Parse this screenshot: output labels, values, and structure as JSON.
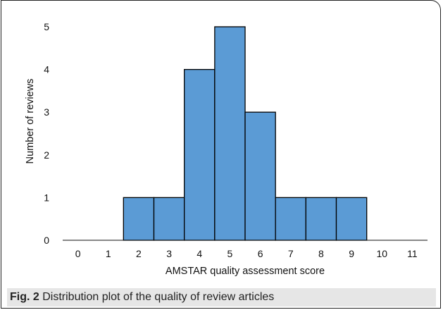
{
  "caption": {
    "label": "Fig. 2",
    "text": " Distribution plot of the quality of review articles"
  },
  "colors": {
    "bar_fill": "#5b9bd5",
    "bar_stroke": "#000000",
    "axis": "#111111"
  },
  "chart_data": {
    "type": "bar",
    "title": "",
    "xlabel": "AMSTAR quality assessment score",
    "ylabel": "Number of reviews",
    "categories": [
      "0",
      "1",
      "2",
      "3",
      "4",
      "5",
      "6",
      "7",
      "8",
      "9",
      "10",
      "11"
    ],
    "values": [
      0,
      0,
      1,
      1,
      4,
      5,
      3,
      1,
      1,
      1,
      0,
      0
    ],
    "ylim": [
      0,
      5
    ],
    "yticks": [
      "0",
      "1",
      "2",
      "3",
      "4",
      "5"
    ],
    "grid": false,
    "legend": "none"
  }
}
